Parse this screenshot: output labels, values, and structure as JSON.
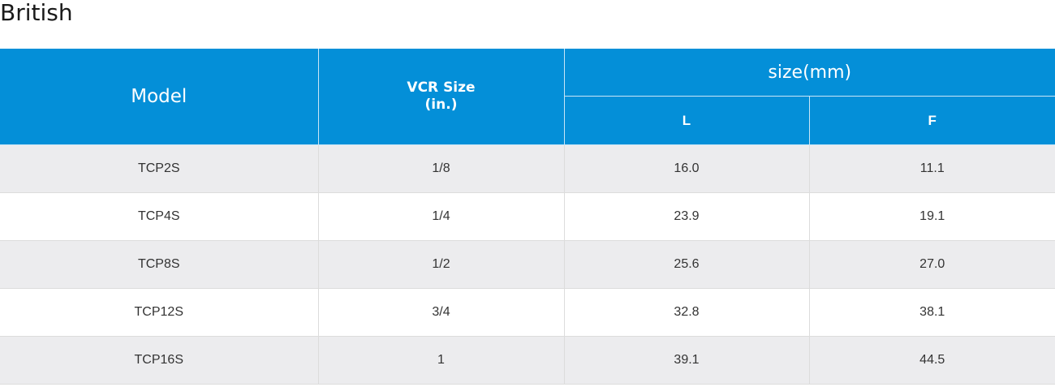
{
  "section_title": "British",
  "table": {
    "header": {
      "model": "Model",
      "vcr_size_line1": "VCR Size",
      "vcr_size_line2": "(in.)",
      "size_group": "size(mm)",
      "col_l": "L",
      "col_f": "F"
    },
    "rows": [
      {
        "model": "TCP2S",
        "vcr": "1/8",
        "l": "16.0",
        "f": "11.1"
      },
      {
        "model": "TCP4S",
        "vcr": "1/4",
        "l": "23.9",
        "f": "19.1"
      },
      {
        "model": "TCP8S",
        "vcr": "1/2",
        "l": "25.6",
        "f": "27.0"
      },
      {
        "model": "TCP12S",
        "vcr": "3/4",
        "l": "32.8",
        "f": "38.1"
      },
      {
        "model": "TCP16S",
        "vcr": "1",
        "l": "39.1",
        "f": "44.5"
      }
    ]
  },
  "colors": {
    "header_bg": "#048fd8",
    "row_alt_bg": "#ececee"
  }
}
